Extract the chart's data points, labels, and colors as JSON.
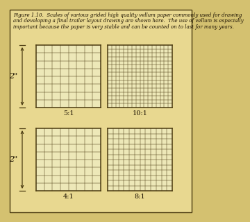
{
  "bg_color": "#d4c170",
  "inner_bg": "#e8d890",
  "grid_bg": "#ede8b8",
  "border_color": "#4a3a10",
  "grid_color": "#4a3a10",
  "text_color": "#1a1000",
  "caption_line1": "Figure 1.10.  Scales of various grided high quality vellum paper commonly used for drawing",
  "caption_line2": "and developing a final trailer layout drawing are shown here.  The use of vellum is especially",
  "caption_line3": "important because the paper is very stable and can be counted on to last for many years.",
  "caption_fontsize": 5.0,
  "label_fontsize": 7.0,
  "dim_fontsize": 8.0,
  "grids": [
    {
      "label": "5:1",
      "cols": 8,
      "rows": 8
    },
    {
      "label": "10:1",
      "cols": 16,
      "rows": 16
    },
    {
      "label": "4:1",
      "cols": 8,
      "rows": 8
    },
    {
      "label": "8:1",
      "cols": 12,
      "rows": 12
    }
  ],
  "dim_label": "2\""
}
